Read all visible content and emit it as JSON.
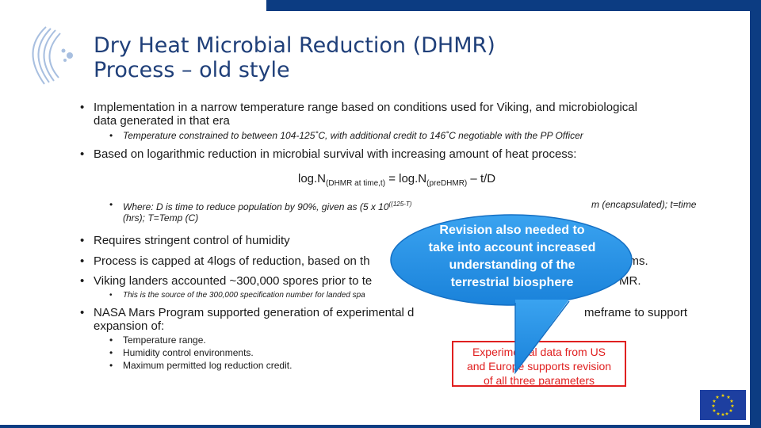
{
  "slide": {
    "title_line1": "Dry Heat Microbial Reduction (DHMR)",
    "title_line2": " Process – old style",
    "bullets": [
      {
        "text": "Implementation in a narrow temperature range based on conditions used for Viking, and microbiological",
        "cont": "data generated in that era"
      },
      {
        "sub": "Temperature constrained to between 104-125˚C, with additional credit to 146˚C negotiable with the PP Officer"
      },
      {
        "text": "Based on logarithmic reduction in microbial survival with increasing amount of heat process:"
      },
      {
        "formula_left": "log.N",
        "formula_sub1": "(DHMR at time,t)",
        "formula_mid": " = log.N",
        "formula_sub2": "(preDHMR)",
        "formula_right": " – t/D"
      },
      {
        "sub": "Where: D is time to reduce population by 90%, given as (5 x 10",
        "sub_sup": "((125-T)",
        "sub_tail": "m (encapsulated); t=time",
        "sub_cont": "(hrs); T=Temp (C)"
      },
      {
        "text": "Requires stringent control of humidity"
      },
      {
        "text": "Process is capped at 4logs of reduction, based on th",
        "tail": "sms."
      },
      {
        "text": "Viking landers accounted ~300,000 spores prior to te",
        "tail": "MR."
      },
      {
        "sub": "This is the source of the 300,000 specification number for landed spa"
      },
      {
        "text": "NASA Mars Program supported generation of experimental d",
        "tail": "meframe to support",
        "cont": "expansion of:"
      }
    ],
    "expansion": [
      "Temperature range.",
      "Humidity control environments.",
      "Maximum permitted log reduction credit."
    ],
    "callout": [
      "Revision also needed to",
      "take into account increased",
      "understanding of the",
      "terrestrial biosphere"
    ],
    "redbox": [
      "Experimental data from US",
      "and Europe supports revision",
      "of all three parameters"
    ],
    "bullet_glyph": "•",
    "colors": {
      "accent": "#0c3c82",
      "callout": "#1e8fe6",
      "red": "#e02020",
      "title": "#1f3f79"
    }
  }
}
